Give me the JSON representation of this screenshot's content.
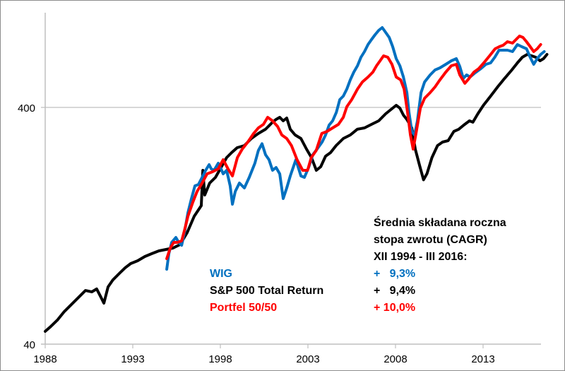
{
  "chart_data": {
    "type": "line",
    "title": "",
    "xlabel": "",
    "ylabel": "",
    "yscale": "log",
    "ylim": [
      40,
      1000
    ],
    "xlim": [
      1988,
      2016.3
    ],
    "grid": true,
    "yticks": [
      {
        "value": 40,
        "label": "40"
      },
      {
        "value": 400,
        "label": "400"
      }
    ],
    "xticks": [
      {
        "value": 1988,
        "label": "1988"
      },
      {
        "value": 1993,
        "label": "1993"
      },
      {
        "value": 1998,
        "label": "1998"
      },
      {
        "value": 2003,
        "label": "2003"
      },
      {
        "value": 2008,
        "label": "2008"
      },
      {
        "value": 2013,
        "label": "2013"
      }
    ],
    "series": [
      {
        "name": "S&P 500 Total Return",
        "color": "#000000",
        "points": [
          [
            1988.0,
            45.3
          ],
          [
            1988.28,
            47.2
          ],
          [
            1988.69,
            50.5
          ],
          [
            1989.09,
            54.9
          ],
          [
            1989.9,
            63.0
          ],
          [
            1990.3,
            67.4
          ],
          [
            1990.66,
            66.5
          ],
          [
            1990.94,
            68.4
          ],
          [
            1991.19,
            63.0
          ],
          [
            1991.35,
            59.6
          ],
          [
            1991.59,
            69.8
          ],
          [
            1991.87,
            74.8
          ],
          [
            1992.27,
            80.1
          ],
          [
            1992.56,
            84.0
          ],
          [
            1992.88,
            87.6
          ],
          [
            1993.28,
            90.0
          ],
          [
            1993.69,
            93.8
          ],
          [
            1994.09,
            96.5
          ],
          [
            1994.49,
            99.1
          ],
          [
            1994.9,
            100.5
          ],
          [
            1995.3,
            101.9
          ],
          [
            1995.7,
            105.4
          ],
          [
            1996.11,
            118.5
          ],
          [
            1996.51,
            138.8
          ],
          [
            1996.91,
            153.9
          ],
          [
            1997.11,
            170.6
          ],
          [
            1997.39,
            191.7
          ],
          [
            1997.72,
            202.5
          ],
          [
            1997.0,
            217
          ],
          [
            1998.36,
            245.6
          ],
          [
            1998.64,
            257.7
          ],
          [
            1998.96,
            270.4
          ],
          [
            1999.37,
            276
          ],
          [
            1999.77,
            295.6
          ],
          [
            2000.17,
            310.3
          ],
          [
            2000.58,
            323.4
          ],
          [
            2000.98,
            346.4
          ],
          [
            2001.18,
            356
          ],
          [
            2001.39,
            363.4
          ],
          [
            2001.59,
            351
          ],
          [
            2001.79,
            360.9
          ],
          [
            2001.99,
            323.4
          ],
          [
            2002.27,
            306
          ],
          [
            2002.6,
            295.6
          ],
          [
            2002.92,
            266.7
          ],
          [
            2003.2,
            245.6
          ],
          [
            2003.48,
            217
          ],
          [
            2003.73,
            224.6
          ],
          [
            2004.01,
            249
          ],
          [
            2004.29,
            257.7
          ],
          [
            2004.61,
            276
          ],
          [
            2005.02,
            295.6
          ],
          [
            2005.42,
            306
          ],
          [
            2005.82,
            323.4
          ],
          [
            2006.23,
            327.8
          ],
          [
            2006.63,
            339.2
          ],
          [
            2007.04,
            351
          ],
          [
            2007.44,
            376
          ],
          [
            2007.84,
            397.2
          ],
          [
            2008.04,
            408.4
          ],
          [
            2008.25,
            397.2
          ],
          [
            2008.45,
            371
          ],
          [
            2008.65,
            356
          ],
          [
            2008.93,
            327.8
          ],
          [
            2009.13,
            266.7
          ],
          [
            2009.37,
            228.2
          ],
          [
            2009.6,
            197.9
          ],
          [
            2009.8,
            210
          ],
          [
            2010.08,
            245.6
          ],
          [
            2010.4,
            276
          ],
          [
            2010.69,
            285.6
          ],
          [
            2011.01,
            289.6
          ],
          [
            2011.33,
            316.7
          ],
          [
            2011.61,
            323.4
          ],
          [
            2011.9,
            336.9
          ],
          [
            2012.22,
            351
          ],
          [
            2012.42,
            346.4
          ],
          [
            2012.7,
            376
          ],
          [
            2013.02,
            408.4
          ],
          [
            2013.43,
            446.6
          ],
          [
            2013.83,
            488.4
          ],
          [
            2014.23,
            530.4
          ],
          [
            2014.64,
            575.9
          ],
          [
            2014.96,
            616.8
          ],
          [
            2015.24,
            651.6
          ],
          [
            2015.52,
            669.7
          ],
          [
            2015.77,
            660.5
          ],
          [
            2016.01,
            651.6
          ],
          [
            2016.25,
            629.6
          ],
          [
            2016.45,
            642.7
          ],
          [
            2016.65,
            669.7
          ]
        ]
      },
      {
        "name": "WIG",
        "color": "#0070C0",
        "points": [
          [
            1994.94,
            82.9
          ],
          [
            1995.06,
            96.5
          ],
          [
            1995.22,
            107.6
          ],
          [
            1995.46,
            112.9
          ],
          [
            1995.62,
            107.6
          ],
          [
            1995.79,
            104.6
          ],
          [
            1995.95,
            118.5
          ],
          [
            1996.15,
            143.6
          ],
          [
            1996.35,
            164.8
          ],
          [
            1996.55,
            186.5
          ],
          [
            1996.75,
            189
          ],
          [
            1996.96,
            202.5
          ],
          [
            1997.16,
            217
          ],
          [
            1997.36,
            229.2
          ],
          [
            1997.48,
            220
          ],
          [
            1997.64,
            217
          ],
          [
            1997.88,
            232.4
          ],
          [
            1998.04,
            220
          ],
          [
            1998.16,
            209.6
          ],
          [
            1998.36,
            217
          ],
          [
            1998.56,
            186.5
          ],
          [
            1998.69,
            156
          ],
          [
            1998.85,
            176.5
          ],
          [
            1999.09,
            191.7
          ],
          [
            1999.37,
            182.7
          ],
          [
            1999.65,
            202.5
          ],
          [
            1999.97,
            232.4
          ],
          [
            2000.17,
            263
          ],
          [
            2000.38,
            281
          ],
          [
            2000.58,
            252.4
          ],
          [
            2000.78,
            240.6
          ],
          [
            2000.98,
            217
          ],
          [
            2001.18,
            223
          ],
          [
            2001.39,
            209.6
          ],
          [
            2001.59,
            164.8
          ],
          [
            2001.79,
            182.7
          ],
          [
            2001.99,
            205.3
          ],
          [
            2002.31,
            240.6
          ],
          [
            2002.6,
            205.3
          ],
          [
            2002.8,
            202.5
          ],
          [
            2003.04,
            223
          ],
          [
            2003.28,
            252.4
          ],
          [
            2003.52,
            266.7
          ],
          [
            2003.81,
            285.6
          ],
          [
            2004.01,
            306
          ],
          [
            2004.21,
            336.9
          ],
          [
            2004.41,
            351
          ],
          [
            2004.62,
            381
          ],
          [
            2004.82,
            431.3
          ],
          [
            2005.02,
            446.6
          ],
          [
            2005.22,
            478.4
          ],
          [
            2005.42,
            523.2
          ],
          [
            2005.62,
            564
          ],
          [
            2005.83,
            600
          ],
          [
            2006.03,
            651.6
          ],
          [
            2006.23,
            688.5
          ],
          [
            2006.43,
            737.6
          ],
          [
            2006.63,
            774
          ],
          [
            2006.84,
            812.1
          ],
          [
            2007.04,
            846.4
          ],
          [
            2007.24,
            870
          ],
          [
            2007.44,
            829.2
          ],
          [
            2007.64,
            790
          ],
          [
            2007.84,
            722.5
          ],
          [
            2008.04,
            642.7
          ],
          [
            2008.25,
            600
          ],
          [
            2008.45,
            537.7
          ],
          [
            2008.65,
            462.2
          ],
          [
            2008.77,
            381
          ],
          [
            2008.93,
            316.7
          ],
          [
            2009.09,
            306
          ],
          [
            2009.25,
            351
          ],
          [
            2009.46,
            462.2
          ],
          [
            2009.66,
            512.4
          ],
          [
            2009.98,
            548.8
          ],
          [
            2010.26,
            575.9
          ],
          [
            2010.54,
            587.9
          ],
          [
            2010.87,
            608.4
          ],
          [
            2011.19,
            629.6
          ],
          [
            2011.47,
            642.7
          ],
          [
            2011.67,
            596.1
          ],
          [
            2011.87,
            530.4
          ],
          [
            2012.06,
            548.8
          ],
          [
            2012.26,
            537.7
          ],
          [
            2012.55,
            560.3
          ],
          [
            2012.88,
            583.8
          ],
          [
            2013.16,
            608.4
          ],
          [
            2013.43,
            616.8
          ],
          [
            2013.67,
            651.6
          ],
          [
            2013.91,
            698
          ],
          [
            2014.15,
            698
          ],
          [
            2014.39,
            698
          ],
          [
            2014.68,
            688.5
          ],
          [
            2014.96,
            737.6
          ],
          [
            2015.2,
            722.5
          ],
          [
            2015.48,
            707.7
          ],
          [
            2015.69,
            651.6
          ],
          [
            2015.89,
            608.4
          ],
          [
            2016.09,
            642.7
          ],
          [
            2016.29,
            669.7
          ],
          [
            2016.49,
            688.5
          ]
        ]
      },
      {
        "name": "Portfel 50/50",
        "color": "#FF0000",
        "points": [
          [
            1994.94,
            91.9
          ],
          [
            1995.14,
            101.9
          ],
          [
            1995.34,
            107.6
          ],
          [
            1995.54,
            107.6
          ],
          [
            1995.79,
            109.2
          ],
          [
            1995.95,
            121
          ],
          [
            1996.15,
            138.8
          ],
          [
            1996.43,
            159.2
          ],
          [
            1996.67,
            176.5
          ],
          [
            1996.96,
            191.7
          ],
          [
            1997.24,
            209.6
          ],
          [
            1997.56,
            214
          ],
          [
            1997.88,
            220
          ],
          [
            1998.16,
            240.6
          ],
          [
            1998.44,
            220
          ],
          [
            1998.69,
            205.3
          ],
          [
            1998.97,
            245.6
          ],
          [
            1999.25,
            266.7
          ],
          [
            1999.57,
            285.6
          ],
          [
            1999.9,
            310.3
          ],
          [
            2000.17,
            327.8
          ],
          [
            2000.46,
            339.2
          ],
          [
            2000.7,
            363.4
          ],
          [
            2000.98,
            351
          ],
          [
            2001.27,
            332.3
          ],
          [
            2001.51,
            306
          ],
          [
            2001.79,
            295.6
          ],
          [
            2002.06,
            276
          ],
          [
            2002.38,
            240.6
          ],
          [
            2002.7,
            217
          ],
          [
            2002.98,
            217
          ],
          [
            2003.19,
            245.6
          ],
          [
            2003.47,
            263
          ],
          [
            2003.79,
            310.3
          ],
          [
            2004.09,
            316.7
          ],
          [
            2004.41,
            327.8
          ],
          [
            2004.74,
            339.2
          ],
          [
            2005.02,
            363.4
          ],
          [
            2005.22,
            402.8
          ],
          [
            2005.5,
            431.3
          ],
          [
            2005.83,
            478.4
          ],
          [
            2006.11,
            512.4
          ],
          [
            2006.43,
            537.7
          ],
          [
            2006.71,
            564
          ],
          [
            2006.92,
            600
          ],
          [
            2007.12,
            629.6
          ],
          [
            2007.32,
            660.5
          ],
          [
            2007.56,
            651.6
          ],
          [
            2007.8,
            608.4
          ],
          [
            2008.04,
            537.7
          ],
          [
            2008.29,
            523.2
          ],
          [
            2008.49,
            478.4
          ],
          [
            2008.69,
            381
          ],
          [
            2008.85,
            306
          ],
          [
            2009.01,
            266.7
          ],
          [
            2009.17,
            310.3
          ],
          [
            2009.42,
            397.2
          ],
          [
            2009.66,
            437.5
          ],
          [
            2009.98,
            462.2
          ],
          [
            2010.26,
            488.4
          ],
          [
            2010.54,
            523.2
          ],
          [
            2010.87,
            564
          ],
          [
            2011.19,
            600
          ],
          [
            2011.47,
            608.4
          ],
          [
            2011.67,
            548.8
          ],
          [
            2011.96,
            505.6
          ],
          [
            2012.2,
            530.4
          ],
          [
            2012.48,
            564
          ],
          [
            2012.76,
            583.8
          ],
          [
            2013.04,
            616.8
          ],
          [
            2013.37,
            660.5
          ],
          [
            2013.69,
            707.7
          ],
          [
            2013.93,
            722.5
          ],
          [
            2014.15,
            732.4
          ],
          [
            2014.39,
            757.8
          ],
          [
            2014.68,
            747.6
          ],
          [
            2014.88,
            774
          ],
          [
            2015.08,
            801.1
          ],
          [
            2015.28,
            790
          ],
          [
            2015.48,
            757.8
          ],
          [
            2015.69,
            722.5
          ],
          [
            2015.89,
            688.5
          ],
          [
            2016.09,
            707.7
          ],
          [
            2016.29,
            737.6
          ]
        ]
      }
    ],
    "annotation": {
      "header_lines": [
        "Średnia składana roczna",
        "stopa zwrotu (CAGR)",
        "XII 1994 - III 2016:"
      ],
      "rows": [
        {
          "label": "WIG",
          "value": "+   9,3%",
          "color": "#0070C0"
        },
        {
          "label": "S&P 500 Total Return",
          "value": "+   9,4%",
          "color": "#000000"
        },
        {
          "label": "Portfel 50/50",
          "value": "+ 10,0%",
          "color": "#FF0000"
        }
      ]
    },
    "legend_position": "bottom-center"
  }
}
